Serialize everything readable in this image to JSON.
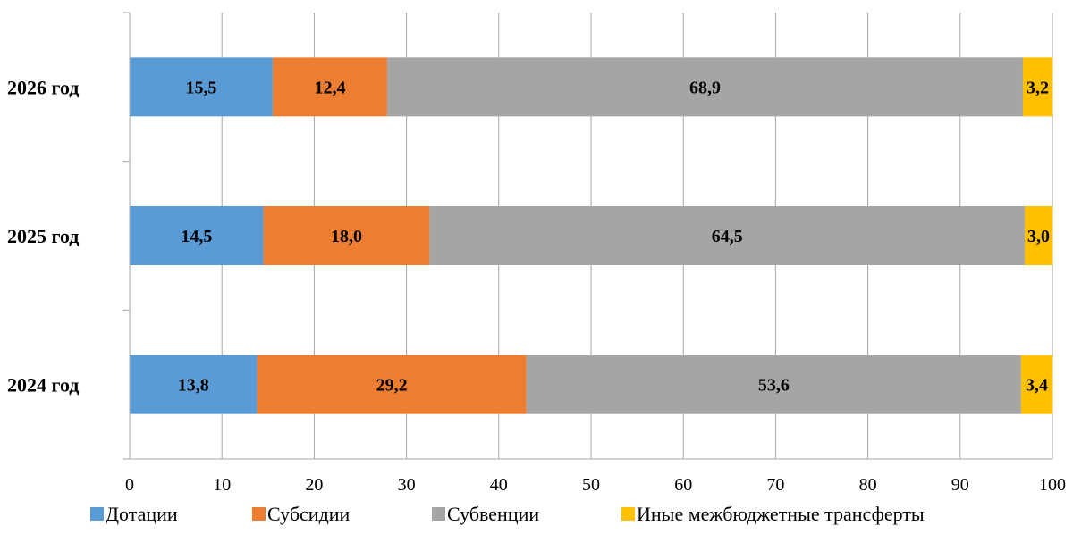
{
  "chart_data": {
    "type": "bar",
    "orientation": "horizontal",
    "stacked": true,
    "title": "",
    "xlabel": "",
    "ylabel": "",
    "xlim": [
      0,
      100
    ],
    "x_ticks": [
      0,
      10,
      20,
      30,
      40,
      50,
      60,
      70,
      80,
      90,
      100
    ],
    "grid": true,
    "legend_position": "bottom",
    "categories": [
      "2024 год",
      "2025 год",
      "2026 год"
    ],
    "series": [
      {
        "name": "Дотации",
        "color": "#5b9bd5",
        "values": [
          13.8,
          14.5,
          15.5
        ],
        "labels": [
          "13,8",
          "14,5",
          "15,5"
        ]
      },
      {
        "name": "Субсидии",
        "color": "#ed7d31",
        "values": [
          29.2,
          18.0,
          12.4
        ],
        "labels": [
          "29,2",
          "18,0",
          "12,4"
        ]
      },
      {
        "name": "Субвенции",
        "color": "#a5a5a5",
        "values": [
          53.6,
          64.5,
          68.9
        ],
        "labels": [
          "53,6",
          "64,5",
          "68,9"
        ]
      },
      {
        "name": "Иные межбюджетные трансферты",
        "color": "#ffc000",
        "values": [
          3.4,
          3.0,
          3.2
        ],
        "labels": [
          "3,4",
          "3,0",
          "3,2"
        ]
      }
    ]
  }
}
